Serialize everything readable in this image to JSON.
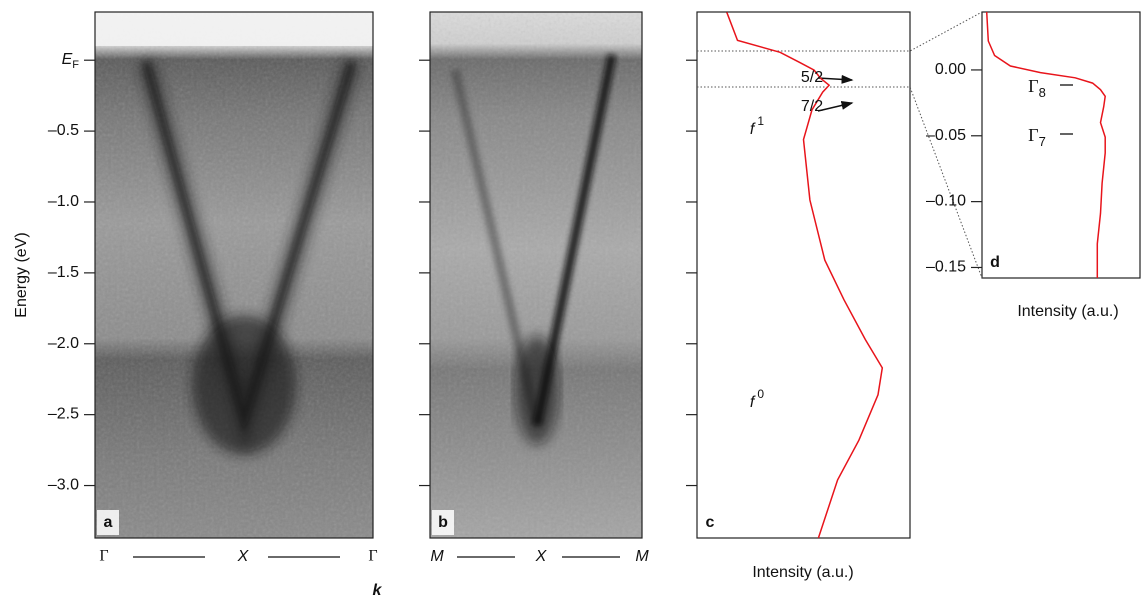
{
  "chart_data": [
    {
      "type": "image",
      "label": "a",
      "ylabel": "Energy (eV)",
      "xlabel": "k",
      "xlabels": [
        "Γ",
        "X",
        "Γ"
      ],
      "ylim": [
        -3.37,
        0.34
      ],
      "yticks": [
        {
          "value": 0,
          "label": "E",
          "sub": "F"
        },
        {
          "value": -0.5,
          "label": "–0.5"
        },
        {
          "value": -1.0,
          "label": "–1.0"
        },
        {
          "value": -1.5,
          "label": "–1.5"
        },
        {
          "value": -2.0,
          "label": "–2.0"
        },
        {
          "value": -2.5,
          "label": "–2.5"
        },
        {
          "value": -3.0,
          "label": "–3.0"
        }
      ],
      "tick_labels": true
    },
    {
      "type": "image",
      "label": "b",
      "xlabels": [
        "M",
        "X",
        "M"
      ],
      "ylim": [
        -3.37,
        0.34
      ],
      "yticks": [
        0,
        -0.5,
        -1.0,
        -1.5,
        -2.0,
        -2.5,
        -3.0
      ],
      "tick_labels": false
    },
    {
      "type": "line",
      "label": "c",
      "xlabel": "Intensity (a.u.)",
      "color": "#e8141b",
      "ylim": [
        -3.37,
        0.34
      ],
      "yticks": [
        0,
        -0.5,
        -1.0,
        -1.5,
        -2.0,
        -2.5,
        -3.0
      ],
      "tick_labels": false,
      "xlim": [
        0,
        1
      ],
      "x": [
        0.14,
        0.19,
        0.39,
        0.48,
        0.55,
        0.58,
        0.62,
        0.59,
        0.54,
        0.5,
        0.53,
        0.6,
        0.69,
        0.79,
        0.87,
        0.85,
        0.76,
        0.66,
        0.57
      ],
      "y": [
        0.338,
        0.14,
        0.056,
        -0.014,
        -0.07,
        -0.127,
        -0.176,
        -0.225,
        -0.35,
        -0.56,
        -0.986,
        -1.41,
        -1.69,
        -1.97,
        -2.17,
        -2.36,
        -2.68,
        -2.96,
        -3.37
      ],
      "annotations": [
        {
          "text": "5/2"
        },
        {
          "text": "7/2"
        },
        {
          "text": "f",
          "sup": "1"
        },
        {
          "text": "f",
          "sup": "0"
        }
      ]
    },
    {
      "type": "line",
      "label": "d",
      "xlabel": "Intensity (a.u.)",
      "color": "#e8141b",
      "ylim": [
        -0.158,
        0.044
      ],
      "yticks": [
        {
          "value": 0,
          "label": "0.00"
        },
        {
          "value": -0.05,
          "label": "–0.05"
        },
        {
          "value": -0.1,
          "label": "–0.10"
        },
        {
          "value": -0.15,
          "label": "–0.15"
        }
      ],
      "tick_labels": true,
      "xlim": [
        0,
        1
      ],
      "x": [
        0.03,
        0.04,
        0.08,
        0.18,
        0.37,
        0.59,
        0.7,
        0.75,
        0.78,
        0.77,
        0.75,
        0.78,
        0.78,
        0.76,
        0.75,
        0.73,
        0.73
      ],
      "y": [
        0.044,
        0.022,
        0.011,
        0.003,
        -0.002,
        -0.006,
        -0.01,
        -0.015,
        -0.02,
        -0.028,
        -0.04,
        -0.051,
        -0.063,
        -0.086,
        -0.109,
        -0.132,
        -0.158
      ],
      "annotations": [
        {
          "text": "Γ",
          "sub": "8"
        },
        {
          "text": "Γ",
          "sub": "7"
        }
      ]
    }
  ]
}
